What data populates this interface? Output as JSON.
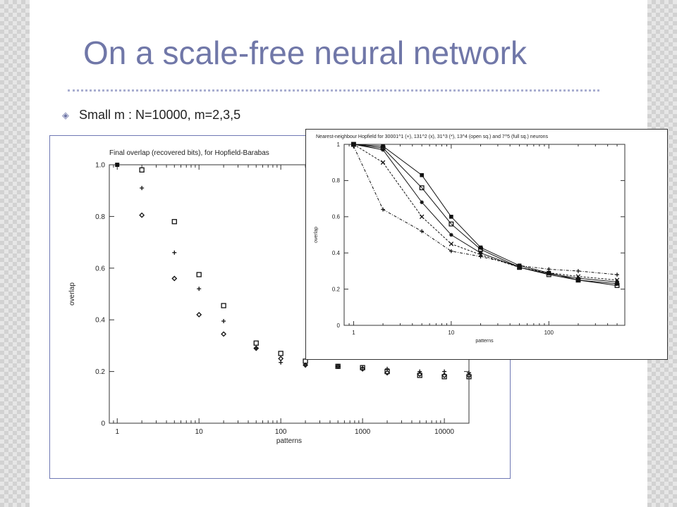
{
  "slide": {
    "title": "On a scale-free neural network",
    "bullet": "Small m : N=10000, m=2,3,5"
  },
  "chart_data": [
    {
      "type": "scatter",
      "title": "Final overlap (recovered bits), for Hopfield-Barabas",
      "xlabel": "patterns",
      "ylabel": "overlap",
      "xscale": "log",
      "xlim": [
        0.8,
        20000
      ],
      "ylim": [
        0,
        1.0
      ],
      "xticks": [
        {
          "value": 1,
          "label": "1"
        },
        {
          "value": 10,
          "label": "10"
        },
        {
          "value": 100,
          "label": "100"
        },
        {
          "value": 1000,
          "label": "1000"
        },
        {
          "value": 10000,
          "label": "10000"
        }
      ],
      "yticks": [
        {
          "value": 0,
          "label": "0"
        },
        {
          "value": 0.2,
          "label": "0.2"
        },
        {
          "value": 0.4,
          "label": "0.4"
        },
        {
          "value": 0.6,
          "label": "0.6"
        },
        {
          "value": 0.8,
          "label": "0.8"
        },
        {
          "value": 1.0,
          "label": "1.0"
        }
      ],
      "series": [
        {
          "marker": "open-square",
          "x": [
            2,
            5,
            10,
            20,
            50,
            100,
            200,
            500,
            1000,
            2000,
            5000,
            10000,
            20000
          ],
          "y": [
            0.98,
            0.78,
            0.575,
            0.455,
            0.31,
            0.27,
            0.24,
            0.22,
            0.215,
            0.2,
            0.185,
            0.18,
            0.18
          ]
        },
        {
          "marker": "plus",
          "x": [
            2,
            5,
            10,
            20,
            50,
            100,
            200,
            500,
            1000,
            2000,
            5000,
            10000,
            20000
          ],
          "y": [
            0.91,
            0.66,
            0.52,
            0.395,
            0.29,
            0.235,
            0.225,
            0.22,
            0.215,
            0.21,
            0.2,
            0.2,
            0.195
          ]
        },
        {
          "marker": "diamond",
          "x": [
            2,
            5,
            10,
            20,
            50,
            100,
            200,
            500,
            1000,
            2000,
            5000,
            10000,
            20000
          ],
          "y": [
            0.805,
            0.56,
            0.42,
            0.345,
            0.29,
            0.25,
            0.225,
            0.22,
            0.21,
            0.195,
            0.19,
            0.185,
            0.185
          ]
        },
        {
          "marker": "filled-square",
          "x": [
            1
          ],
          "y": [
            1.0
          ]
        }
      ],
      "colors": {
        "marks": "#111111",
        "axes": "#333333"
      }
    },
    {
      "type": "line",
      "title": "Nearest-neighbour Hopfield for 30001^1 (+), 131^2 (x), 31^3 (*), 13^4 (open sq.) and 7^5 (full sq.) neurons",
      "xlabel": "patterns",
      "ylabel": "overlap",
      "xscale": "log",
      "xlim": [
        0.8,
        600
      ],
      "ylim": [
        0,
        1
      ],
      "xticks": [
        {
          "value": 1,
          "label": "1"
        },
        {
          "value": 10,
          "label": "10"
        },
        {
          "value": 100,
          "label": "100"
        }
      ],
      "yticks": [
        {
          "value": 0,
          "label": "0"
        },
        {
          "value": 0.2,
          "label": "0.2"
        },
        {
          "value": 0.4,
          "label": "0.4"
        },
        {
          "value": 0.6,
          "label": "0.6"
        },
        {
          "value": 0.8,
          "label": "0.8"
        },
        {
          "value": 1,
          "label": "1"
        }
      ],
      "series": [
        {
          "marker": "filled-square",
          "x": [
            1,
            2,
            5,
            10,
            20,
            50,
            100,
            200,
            500
          ],
          "y": [
            1.0,
            0.99,
            0.83,
            0.6,
            0.43,
            0.33,
            0.29,
            0.25,
            0.23
          ]
        },
        {
          "marker": "open-square",
          "x": [
            1,
            2,
            5,
            10,
            20,
            50,
            100,
            200,
            500
          ],
          "y": [
            1.0,
            0.98,
            0.76,
            0.56,
            0.42,
            0.32,
            0.28,
            0.25,
            0.22
          ]
        },
        {
          "marker": "star",
          "x": [
            1,
            2,
            5,
            10,
            20,
            50,
            100,
            200,
            500
          ],
          "y": [
            1.0,
            0.97,
            0.68,
            0.5,
            0.4,
            0.32,
            0.285,
            0.26,
            0.24
          ]
        },
        {
          "marker": "cross",
          "x": [
            1,
            2,
            5,
            10,
            20,
            50,
            100,
            200,
            500
          ],
          "y": [
            1.0,
            0.9,
            0.6,
            0.45,
            0.39,
            0.32,
            0.29,
            0.27,
            0.25
          ]
        },
        {
          "marker": "plus",
          "x": [
            1,
            2,
            5,
            10,
            20,
            50,
            100,
            200,
            500
          ],
          "y": [
            0.99,
            0.64,
            0.52,
            0.41,
            0.38,
            0.33,
            0.31,
            0.3,
            0.28
          ]
        }
      ],
      "colors": {
        "marks": "#111111",
        "axes": "#333333"
      }
    }
  ]
}
